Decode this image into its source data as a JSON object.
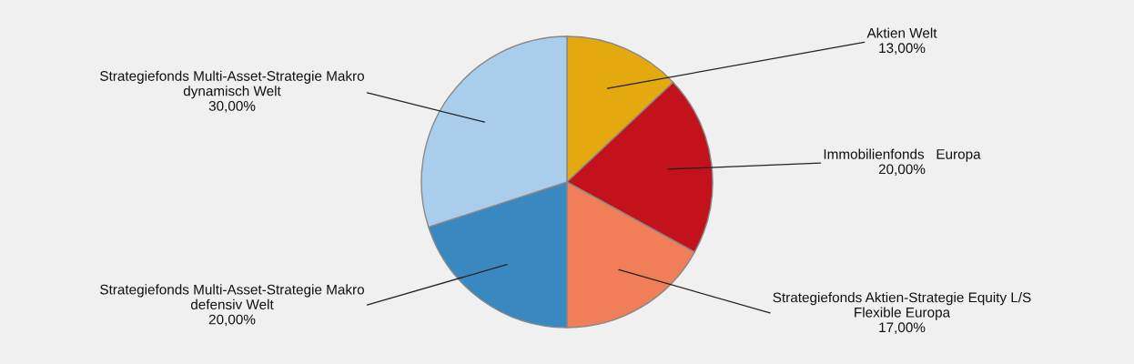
{
  "chart_data": {
    "type": "pie",
    "categories": [
      "Aktien Welt",
      "Immobilienfonds   Europa",
      "Strategiefonds Aktien-Strategie Equity L/S\nFlexible Europa",
      "Strategiefonds Multi-Asset-Strategie Makro\ndefensiv Welt",
      "Strategiefonds Multi-Asset-Strategie Makro\ndynamisch Welt"
    ],
    "values": [
      13,
      20,
      17,
      20,
      30
    ],
    "colors": [
      "#e5a910",
      "#c4121c",
      "#f07e58",
      "#3a88c0",
      "#abcdec"
    ],
    "value_labels": [
      "13,00%",
      "20,00%",
      "17,00%",
      "20,00%",
      "30,00%"
    ]
  }
}
